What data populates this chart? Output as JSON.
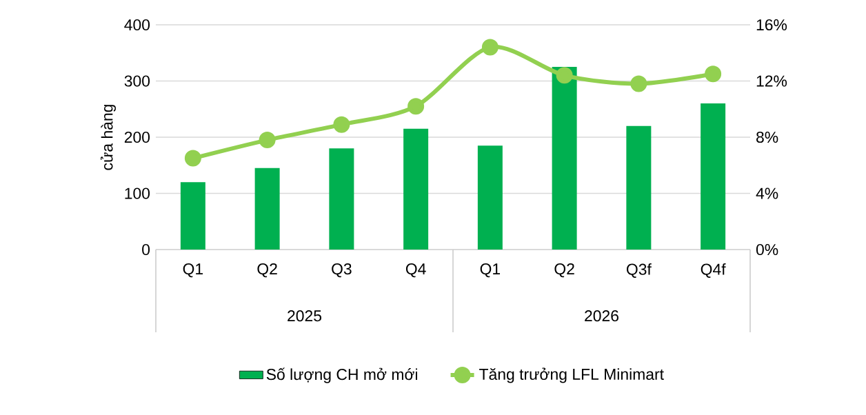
{
  "chart_data": {
    "type": "bar",
    "ylabel": "cửa hàng",
    "categories": [
      "Q1",
      "Q2",
      "Q3",
      "Q4",
      "Q1",
      "Q2",
      "Q3f",
      "Q4f"
    ],
    "annotations": [
      "2025",
      "2026"
    ],
    "series": [
      {
        "name": "Số lượng CH mở mới",
        "color": "#00b050",
        "values": [
          120,
          145,
          180,
          215,
          185,
          325,
          220,
          260
        ]
      },
      {
        "name": "Tăng trưởng LFL Minimart",
        "type": "line",
        "axis": "y2",
        "color": "#92d050",
        "marker": "circle",
        "values": [
          6.5,
          7.8,
          8.9,
          10.2,
          14.4,
          12.4,
          11.8,
          12.5
        ]
      }
    ],
    "ylim": [
      0,
      400
    ],
    "yticks": [
      0,
      100,
      200,
      300,
      400
    ],
    "y2lim": [
      0,
      16
    ],
    "y2ticks": [
      {
        "value": 0,
        "label": "0%"
      },
      {
        "value": 4,
        "label": "4%"
      },
      {
        "value": 8,
        "label": "8%"
      },
      {
        "value": 12,
        "label": "12%"
      },
      {
        "value": 16,
        "label": "16%"
      }
    ],
    "grid": "y",
    "legend": "bottom"
  }
}
